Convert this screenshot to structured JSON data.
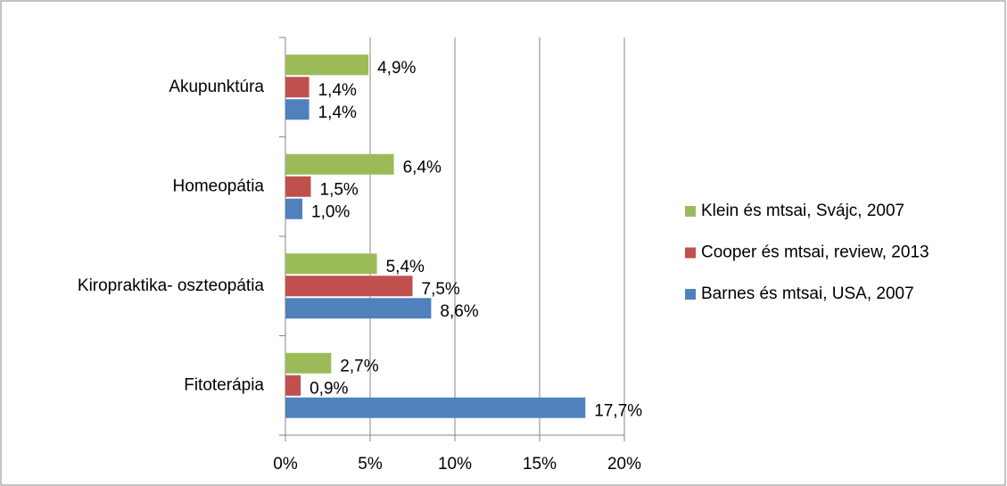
{
  "chart_data": {
    "type": "bar",
    "orientation": "horizontal",
    "categories": [
      "Akupunktúra",
      "Homeopátia",
      "Kiropraktika- oszteopátia",
      "Fitoterápia"
    ],
    "series": [
      {
        "name": "Klein és mtsai, Svájc, 2007",
        "color": "#9bbb59",
        "values": [
          4.9,
          6.4,
          5.4,
          2.7
        ],
        "value_labels": [
          "4,9%",
          "6,4%",
          "5,4%",
          "2,7%"
        ]
      },
      {
        "name": "Cooper és mtsai, review, 2013",
        "color": "#c0504d",
        "values": [
          1.4,
          1.5,
          7.5,
          0.9
        ],
        "value_labels": [
          "1,4%",
          "1,5%",
          "7,5%",
          "0,9%"
        ]
      },
      {
        "name": "Barnes és mtsai, USA, 2007",
        "color": "#4f81bd",
        "values": [
          1.4,
          1.0,
          8.6,
          17.7
        ],
        "value_labels": [
          "1,4%",
          "1,0%",
          "8,6%",
          "17,7%"
        ]
      }
    ],
    "xlim": [
      0,
      20
    ],
    "xticks": [
      {
        "value": 0,
        "label": "0%"
      },
      {
        "value": 5,
        "label": "5%"
      },
      {
        "value": 10,
        "label": "10%"
      },
      {
        "value": 15,
        "label": "15%"
      },
      {
        "value": 20,
        "label": "20%"
      }
    ],
    "grid": true,
    "legend": "right"
  }
}
